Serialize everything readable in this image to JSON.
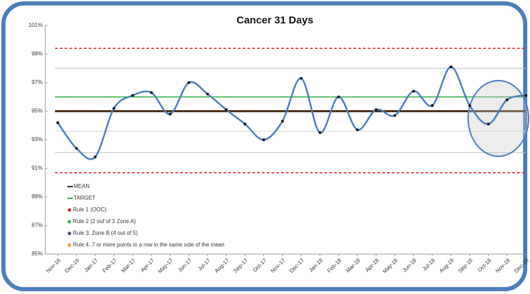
{
  "chart_data": {
    "type": "line",
    "title": "Cancer 31 Days",
    "categories": [
      "Nov-16",
      "Dec-16",
      "Jan-17",
      "Feb-17",
      "Mar-17",
      "Apr-17",
      "May-17",
      "Jun-17",
      "Jul-17",
      "Aug-17",
      "Sep-17",
      "Oct-17",
      "Nov-17",
      "Dec-17",
      "Jan-18",
      "Feb-18",
      "Mar-18",
      "Apr-18",
      "May-18",
      "Jun-18",
      "Jul-18",
      "Aug-18",
      "Sep-18",
      "Oct-18",
      "Nov-18",
      "Dec-18"
    ],
    "series": [
      {
        "color": "#4a7ebb",
        "values": [
          94.2,
          92.4,
          91.8,
          95.2,
          96.1,
          96.3,
          94.8,
          97.0,
          96.2,
          95.1,
          94.1,
          93.0,
          94.3,
          97.3,
          93.5,
          96.0,
          93.7,
          95.1,
          94.7,
          96.4,
          95.4,
          98.1,
          95.4,
          94.1,
          95.8,
          96.1
        ]
      }
    ],
    "mean": {
      "name": "MEAN",
      "value": 95,
      "color": "#3b2314"
    },
    "target": {
      "name": "TARGET",
      "value": 96,
      "color": "#2db34a"
    },
    "reference_lines": [
      {
        "value": 99.4,
        "color": "#e02020",
        "dashed": true
      },
      {
        "value": 90.7,
        "color": "#e02020",
        "dashed": true
      },
      {
        "value": 98.0,
        "color": "#c0c0c0",
        "dashed": false
      },
      {
        "value": 93.6,
        "color": "#d8d8d8",
        "dashed": false
      },
      {
        "value": 92.1,
        "color": "#c0c0c0",
        "dashed": false
      }
    ],
    "rules": [
      {
        "name": "Rule 1 (OOC)",
        "color": "#e02020"
      },
      {
        "name": "Rule 2 (2 ouf of 3 Zone A)",
        "color": "#2db34a"
      },
      {
        "name": "Rule 3. Zone B (4 out of 5)",
        "color": "#5b3f8c"
      },
      {
        "name": "Rule 4. 7 or more points in a row in the same side of the mean",
        "color": "#f0a030"
      }
    ],
    "ylim": [
      85,
      101
    ],
    "yticks": [
      {
        "value": 85,
        "label": "85%"
      },
      {
        "value": 87,
        "label": "87%"
      },
      {
        "value": 89,
        "label": "89%"
      },
      {
        "value": 91,
        "label": "91%"
      },
      {
        "value": 93,
        "label": "93%"
      },
      {
        "value": 95,
        "label": "95%"
      },
      {
        "value": 97,
        "label": "97%"
      },
      {
        "value": 99,
        "label": "99%"
      },
      {
        "value": 101,
        "label": "101%"
      }
    ]
  }
}
